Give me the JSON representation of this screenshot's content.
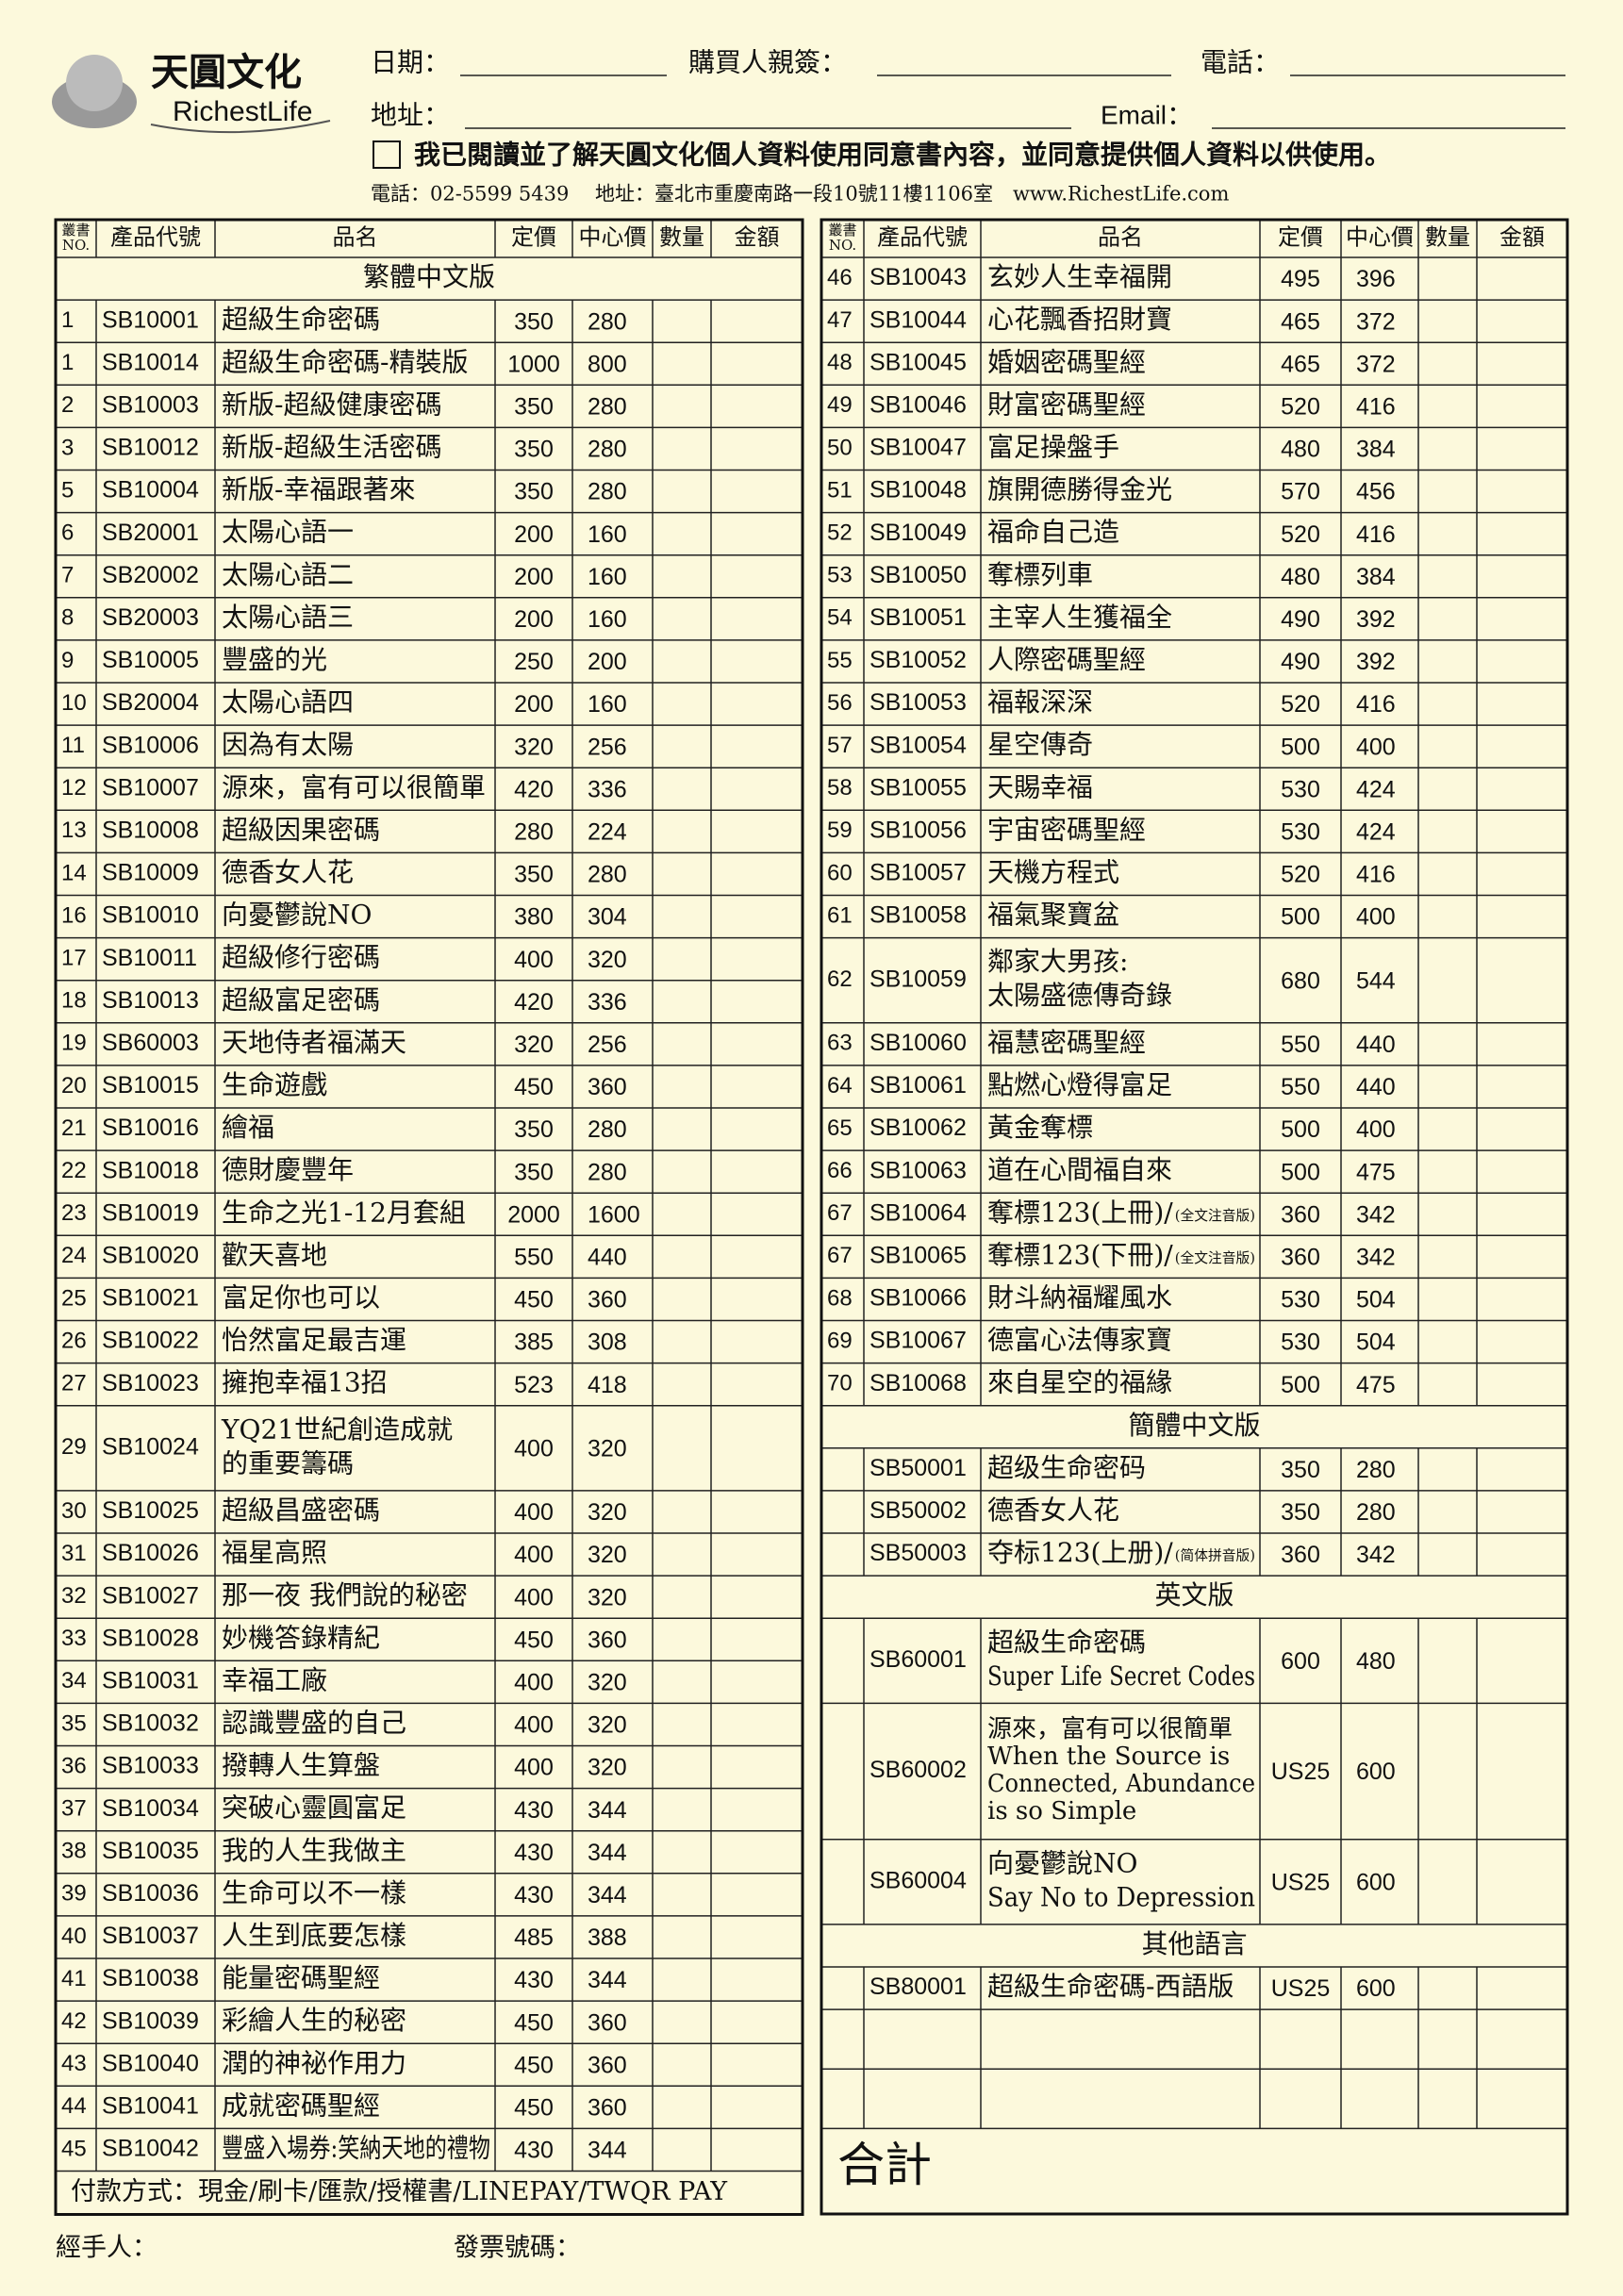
{
  "header": {
    "brand": "天圓文化",
    "brand_en": "RichestLife",
    "fields": [
      "日期：",
      "購買人親簽：",
      "電話：",
      "地址：",
      "Email："
    ],
    "consent": "我已閱讀並了解天圓文化個人資料使用同意書內容，並同意提供個人資料以供使用。",
    "contact": "電話：02-5599 5439　 地址：臺北市重慶南路一段10號11樓1106室　www.RichestLife.com"
  },
  "columns": [
    [
      "叢書",
      "NO."
    ],
    "產品代號",
    "品名",
    "定價",
    "中心價",
    "數量",
    "金額"
  ],
  "left": {
    "rows": [
      {
        "section": "繁體中文版"
      },
      {
        "no": "1",
        "code": "SB10001",
        "name": [
          "超級生命密碼"
        ],
        "price": 350,
        "center": 280
      },
      {
        "no": "1",
        "code": "SB10014",
        "name": [
          "超級生命密碼-精裝版"
        ],
        "price": 1000,
        "center": 800
      },
      {
        "no": "2",
        "code": "SB10003",
        "name": [
          "新版-超級健康密碼"
        ],
        "price": 350,
        "center": 280
      },
      {
        "no": "3",
        "code": "SB10012",
        "name": [
          "新版-超級生活密碼"
        ],
        "price": 350,
        "center": 280
      },
      {
        "no": "5",
        "code": "SB10004",
        "name": [
          "新版-幸福跟著來"
        ],
        "price": 350,
        "center": 280
      },
      {
        "no": "6",
        "code": "SB20001",
        "name": [
          "太陽心語一"
        ],
        "price": 200,
        "center": 160
      },
      {
        "no": "7",
        "code": "SB20002",
        "name": [
          "太陽心語二"
        ],
        "price": 200,
        "center": 160
      },
      {
        "no": "8",
        "code": "SB20003",
        "name": [
          "太陽心語三"
        ],
        "price": 200,
        "center": 160
      },
      {
        "no": "9",
        "code": "SB10005",
        "name": [
          "豐盛的光"
        ],
        "price": 250,
        "center": 200
      },
      {
        "no": "10",
        "code": "SB20004",
        "name": [
          "太陽心語四"
        ],
        "price": 200,
        "center": 160
      },
      {
        "no": "11",
        "code": "SB10006",
        "name": [
          "因為有太陽"
        ],
        "price": 320,
        "center": 256
      },
      {
        "no": "12",
        "code": "SB10007",
        "name": [
          "源來，富有可以很簡單"
        ],
        "price": 420,
        "center": 336
      },
      {
        "no": "13",
        "code": "SB10008",
        "name": [
          "超級因果密碼"
        ],
        "price": 280,
        "center": 224
      },
      {
        "no": "14",
        "code": "SB10009",
        "name": [
          "德香女人花"
        ],
        "price": 350,
        "center": 280
      },
      {
        "no": "16",
        "code": "SB10010",
        "name": [
          "向憂鬱說NO"
        ],
        "price": 380,
        "center": 304
      },
      {
        "no": "17",
        "code": "SB10011",
        "name": [
          "超級修行密碼"
        ],
        "price": 400,
        "center": 320
      },
      {
        "no": "18",
        "code": "SB10013",
        "name": [
          "超級富足密碼"
        ],
        "price": 420,
        "center": 336
      },
      {
        "no": "19",
        "code": "SB60003",
        "name": [
          "天地侍者福滿天"
        ],
        "price": 320,
        "center": 256
      },
      {
        "no": "20",
        "code": "SB10015",
        "name": [
          "生命遊戲"
        ],
        "price": 450,
        "center": 360
      },
      {
        "no": "21",
        "code": "SB10016",
        "name": [
          "繪福"
        ],
        "price": 350,
        "center": 280
      },
      {
        "no": "22",
        "code": "SB10018",
        "name": [
          "德財慶豐年"
        ],
        "price": 350,
        "center": 280
      },
      {
        "no": "23",
        "code": "SB10019",
        "name": [
          "生命之光1-12月套組"
        ],
        "price": 2000,
        "center": 1600
      },
      {
        "no": "24",
        "code": "SB10020",
        "name": [
          "歡天喜地"
        ],
        "price": 550,
        "center": 440
      },
      {
        "no": "25",
        "code": "SB10021",
        "name": [
          "富足你也可以"
        ],
        "price": 450,
        "center": 360
      },
      {
        "no": "26",
        "code": "SB10022",
        "name": [
          "怡然富足最吉運"
        ],
        "price": 385,
        "center": 308
      },
      {
        "no": "27",
        "code": "SB10023",
        "name": [
          "擁抱幸福13招"
        ],
        "price": 523,
        "center": 418
      },
      {
        "no": "29",
        "code": "SB10024",
        "name": [
          "YQ21世紀創造成就",
          "的重要籌碼"
        ],
        "price": 400,
        "center": 320
      },
      {
        "no": "30",
        "code": "SB10025",
        "name": [
          "超級昌盛密碼"
        ],
        "price": 400,
        "center": 320
      },
      {
        "no": "31",
        "code": "SB10026",
        "name": [
          "福星高照"
        ],
        "price": 400,
        "center": 320
      },
      {
        "no": "32",
        "code": "SB10027",
        "name": [
          "那一夜 我們說的秘密"
        ],
        "price": 400,
        "center": 320
      },
      {
        "no": "33",
        "code": "SB10028",
        "name": [
          "妙機答錄精紀"
        ],
        "price": 450,
        "center": 360
      },
      {
        "no": "34",
        "code": "SB10031",
        "name": [
          "幸福工廠"
        ],
        "price": 400,
        "center": 320
      },
      {
        "no": "35",
        "code": "SB10032",
        "name": [
          "認識豐盛的自己"
        ],
        "price": 400,
        "center": 320
      },
      {
        "no": "36",
        "code": "SB10033",
        "name": [
          "撥轉人生算盤"
        ],
        "price": 400,
        "center": 320
      },
      {
        "no": "37",
        "code": "SB10034",
        "name": [
          "突破心靈圓富足"
        ],
        "price": 430,
        "center": 344
      },
      {
        "no": "38",
        "code": "SB10035",
        "name": [
          "我的人生我做主"
        ],
        "price": 430,
        "center": 344
      },
      {
        "no": "39",
        "code": "SB10036",
        "name": [
          "生命可以不一樣"
        ],
        "price": 430,
        "center": 344
      },
      {
        "no": "40",
        "code": "SB10037",
        "name": [
          "人生到底要怎樣"
        ],
        "price": 485,
        "center": 388
      },
      {
        "no": "41",
        "code": "SB10038",
        "name": [
          "能量密碼聖經"
        ],
        "price": 430,
        "center": 344
      },
      {
        "no": "42",
        "code": "SB10039",
        "name": [
          "彩繪人生的秘密"
        ],
        "price": 450,
        "center": 360
      },
      {
        "no": "43",
        "code": "SB10040",
        "name": [
          "潤的神祕作用力"
        ],
        "price": 450,
        "center": 360
      },
      {
        "no": "44",
        "code": "SB10041",
        "name": [
          "成就密碼聖經"
        ],
        "price": 450,
        "center": 360
      },
      {
        "no": "45",
        "code": "SB10042",
        "name": [
          "豐盛入場券:笑納天地的禮物"
        ],
        "price": 430,
        "center": 344
      }
    ],
    "payment": "付款方式：現金/刷卡/匯款/授權書/LINEPAY/TWQR PAY"
  },
  "right": {
    "rows": [
      {
        "no": "46",
        "code": "SB10043",
        "name": [
          "玄妙人生幸福開"
        ],
        "price": 495,
        "center": 396
      },
      {
        "no": "47",
        "code": "SB10044",
        "name": [
          "心花飄香招財寶"
        ],
        "price": 465,
        "center": 372
      },
      {
        "no": "48",
        "code": "SB10045",
        "name": [
          "婚姻密碼聖經"
        ],
        "price": 465,
        "center": 372
      },
      {
        "no": "49",
        "code": "SB10046",
        "name": [
          "財富密碼聖經"
        ],
        "price": 520,
        "center": 416
      },
      {
        "no": "50",
        "code": "SB10047",
        "name": [
          "富足操盤手"
        ],
        "price": 480,
        "center": 384
      },
      {
        "no": "51",
        "code": "SB10048",
        "name": [
          "旗開德勝得金光"
        ],
        "price": 570,
        "center": 456
      },
      {
        "no": "52",
        "code": "SB10049",
        "name": [
          "福命自己造"
        ],
        "price": 520,
        "center": 416
      },
      {
        "no": "53",
        "code": "SB10050",
        "name": [
          "奪標列車"
        ],
        "price": 480,
        "center": 384
      },
      {
        "no": "54",
        "code": "SB10051",
        "name": [
          "主宰人生獲福全"
        ],
        "price": 490,
        "center": 392
      },
      {
        "no": "55",
        "code": "SB10052",
        "name": [
          "人際密碼聖經"
        ],
        "price": 490,
        "center": 392
      },
      {
        "no": "56",
        "code": "SB10053",
        "name": [
          "福報深深"
        ],
        "price": 520,
        "center": 416
      },
      {
        "no": "57",
        "code": "SB10054",
        "name": [
          "星空傳奇"
        ],
        "price": 500,
        "center": 400
      },
      {
        "no": "58",
        "code": "SB10055",
        "name": [
          "天賜幸福"
        ],
        "price": 530,
        "center": 424
      },
      {
        "no": "59",
        "code": "SB10056",
        "name": [
          "宇宙密碼聖經"
        ],
        "price": 530,
        "center": 424
      },
      {
        "no": "60",
        "code": "SB10057",
        "name": [
          "天機方程式"
        ],
        "price": 520,
        "center": 416
      },
      {
        "no": "61",
        "code": "SB10058",
        "name": [
          "福氣聚寶盆"
        ],
        "price": 500,
        "center": 400
      },
      {
        "no": "62",
        "code": "SB10059",
        "name": [
          "鄰家大男孩:",
          "太陽盛德傳奇錄"
        ],
        "price": 680,
        "center": 544
      },
      {
        "no": "63",
        "code": "SB10060",
        "name": [
          "福慧密碼聖經"
        ],
        "price": 550,
        "center": 440
      },
      {
        "no": "64",
        "code": "SB10061",
        "name": [
          "點燃心燈得富足"
        ],
        "price": 550,
        "center": 440
      },
      {
        "no": "65",
        "code": "SB10062",
        "name": [
          "黃金奪標"
        ],
        "price": 500,
        "center": 400
      },
      {
        "no": "66",
        "code": "SB10063",
        "name": [
          "道在心間福自來"
        ],
        "price": 500,
        "center": 475
      },
      {
        "no": "67",
        "code": "SB10064",
        "name": [
          "奪標123(上冊)/"
        ],
        "note": "(全文注音版)",
        "price": 360,
        "center": 342
      },
      {
        "no": "67",
        "code": "SB10065",
        "name": [
          "奪標123(下冊)/"
        ],
        "note": "(全文注音版)",
        "price": 360,
        "center": 342
      },
      {
        "no": "68",
        "code": "SB10066",
        "name": [
          "財斗納福耀風水"
        ],
        "price": 530,
        "center": 504
      },
      {
        "no": "69",
        "code": "SB10067",
        "name": [
          "德富心法傳家寶"
        ],
        "price": 530,
        "center": 504
      },
      {
        "no": "70",
        "code": "SB10068",
        "name": [
          "來自星空的福緣"
        ],
        "price": 500,
        "center": 475
      },
      {
        "section": "簡體中文版"
      },
      {
        "code": "SB50001",
        "name": [
          "超级生命密码"
        ],
        "price": 350,
        "center": 280
      },
      {
        "code": "SB50002",
        "name": [
          "德香女人花"
        ],
        "price": 350,
        "center": 280
      },
      {
        "code": "SB50003",
        "name": [
          "夺标123(上册)/"
        ],
        "note": "(简体拼音版)",
        "price": 360,
        "center": 342
      },
      {
        "section": "英文版"
      },
      {
        "code": "SB60001",
        "name": [
          "超級生命密碼",
          "Super Life Secret Codes"
        ],
        "price": 600,
        "center": 480
      },
      {
        "code": "SB60002",
        "name": [
          "源來，富有可以很簡單",
          "When the Source is",
          "Connected, Abundance",
          "is so Simple"
        ],
        "price": "US25",
        "center": 600
      },
      {
        "code": "SB60004",
        "name": [
          "向憂鬱說NO",
          "Say No to Depression"
        ],
        "price": "US25",
        "center": 600
      },
      {
        "section": "其他語言"
      },
      {
        "code": "SB80001",
        "name": [
          "超級生命密碼-西語版"
        ],
        "price": "US25",
        "center": 600
      }
    ],
    "total": "合計"
  },
  "footer": {
    "handler": "經手人：",
    "invoice": "發票號碼："
  }
}
